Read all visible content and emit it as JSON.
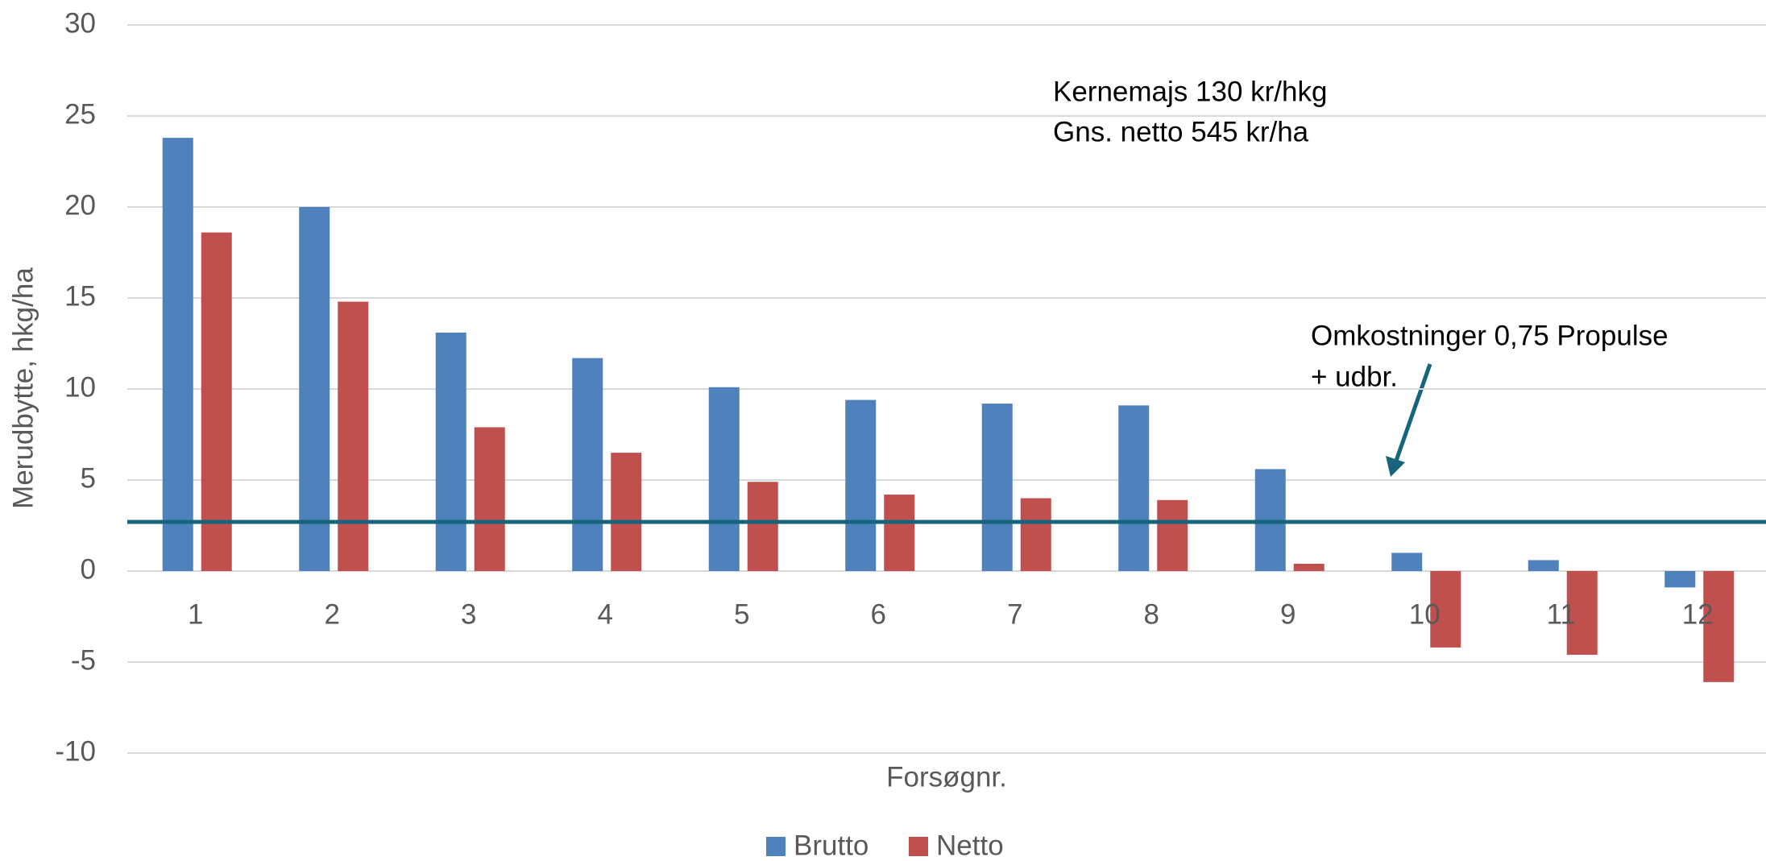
{
  "chart_data": {
    "type": "bar",
    "x_label": "Forsøgnr.",
    "y_label": "Merudbytte, hkg/ha",
    "categories": [
      "1",
      "2",
      "3",
      "4",
      "5",
      "6",
      "7",
      "8",
      "9",
      "10",
      "11",
      "12"
    ],
    "series": [
      {
        "name": "Brutto",
        "color": "#4f81bd",
        "values": [
          23.8,
          20.0,
          13.1,
          11.7,
          10.1,
          9.4,
          9.2,
          9.1,
          5.6,
          1.0,
          0.6,
          -0.9
        ]
      },
      {
        "name": "Netto",
        "color": "#c0504d",
        "values": [
          18.6,
          14.8,
          7.9,
          6.5,
          4.9,
          4.2,
          4.0,
          3.9,
          0.4,
          -4.2,
          -4.6,
          -6.1
        ]
      }
    ],
    "reference_line": {
      "value": 2.7,
      "color": "#17657d"
    },
    "annotations": [
      "Kernemajs 130 kr/hkg",
      "Gns. netto 545 kr/ha",
      "Omkostninger 0,75 Propulse",
      "+ udbr."
    ],
    "ylim": [
      -10,
      30
    ],
    "yticks": [
      -10,
      -5,
      0,
      5,
      10,
      15,
      20,
      25,
      30
    ],
    "grid": true,
    "legend": "bottom"
  }
}
